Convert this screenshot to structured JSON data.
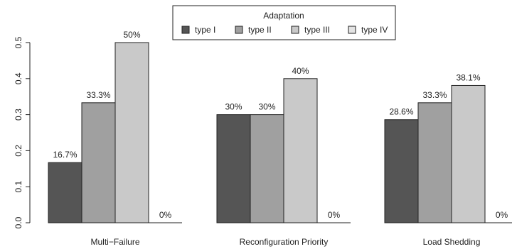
{
  "chart_data": {
    "type": "bar",
    "categories": [
      "Multi−Failure",
      "Reconfiguration Priority",
      "Load Shedding"
    ],
    "series": [
      {
        "name": "type I",
        "color": "#555555",
        "values": [
          0.167,
          0.3,
          0.286
        ],
        "labels": [
          "16.7%",
          "30%",
          "28.6%"
        ]
      },
      {
        "name": "type II",
        "color": "#a0a0a0",
        "values": [
          0.333,
          0.3,
          0.333
        ],
        "labels": [
          "33.3%",
          "30%",
          "33.3%"
        ]
      },
      {
        "name": "type III",
        "color": "#c9c9c9",
        "values": [
          0.5,
          0.4,
          0.381
        ],
        "labels": [
          "50%",
          "40%",
          "38.1%"
        ]
      },
      {
        "name": "type IV",
        "color": "#e4e4e4",
        "values": [
          0,
          0,
          0
        ],
        "labels": [
          "0%",
          "0%",
          "0%"
        ]
      }
    ],
    "legend_title": "Adaptation",
    "legend_position": "top",
    "yticks": [
      "0.0",
      "0.1",
      "0.2",
      "0.3",
      "0.4",
      "0.5"
    ],
    "ylim": [
      0,
      0.5
    ],
    "grid": false
  }
}
